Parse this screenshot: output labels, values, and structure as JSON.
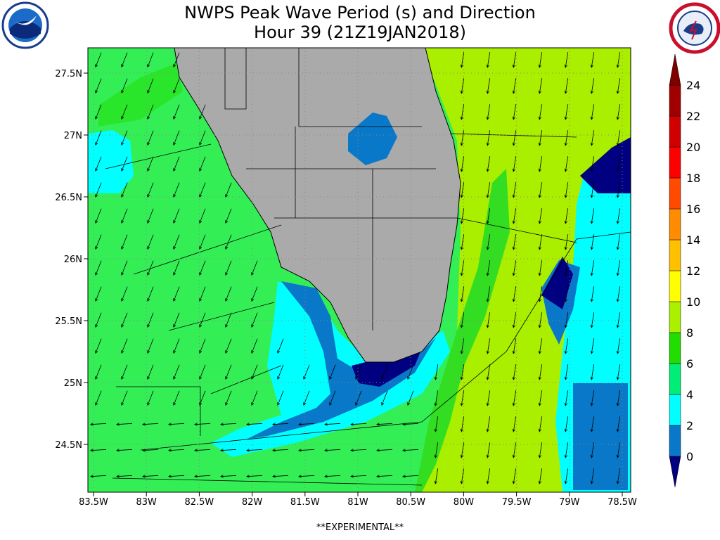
{
  "title": [
    "NWPS Peak Wave Period (s) and Direction",
    "Hour 39 (21Z19JAN2018)"
  ],
  "latitude_labels": [
    "27.5N",
    "27N",
    "26.5N",
    "26N",
    "25.5N",
    "25N",
    "24.5N"
  ],
  "longitude_labels": [
    "83.5W",
    "83W",
    "82.5W",
    "82W",
    "81.5W",
    "81W",
    "80.5W",
    "80W",
    "79.5W",
    "79W",
    "78.5W"
  ],
  "colorbar": {
    "labels": [
      0,
      2,
      4,
      6,
      8,
      10,
      12,
      14,
      16,
      18,
      20,
      22,
      24
    ],
    "colors": [
      "#000080",
      "#0a78c8",
      "#00ffff",
      "#00ee77",
      "#22dd00",
      "#aaf000",
      "#ffff00",
      "#ffc000",
      "#ff8c00",
      "#ff4a00",
      "#ff0000",
      "#d00000",
      "#a00000",
      "#800000"
    ]
  },
  "footer": "**EXPERIMENTAL**"
}
